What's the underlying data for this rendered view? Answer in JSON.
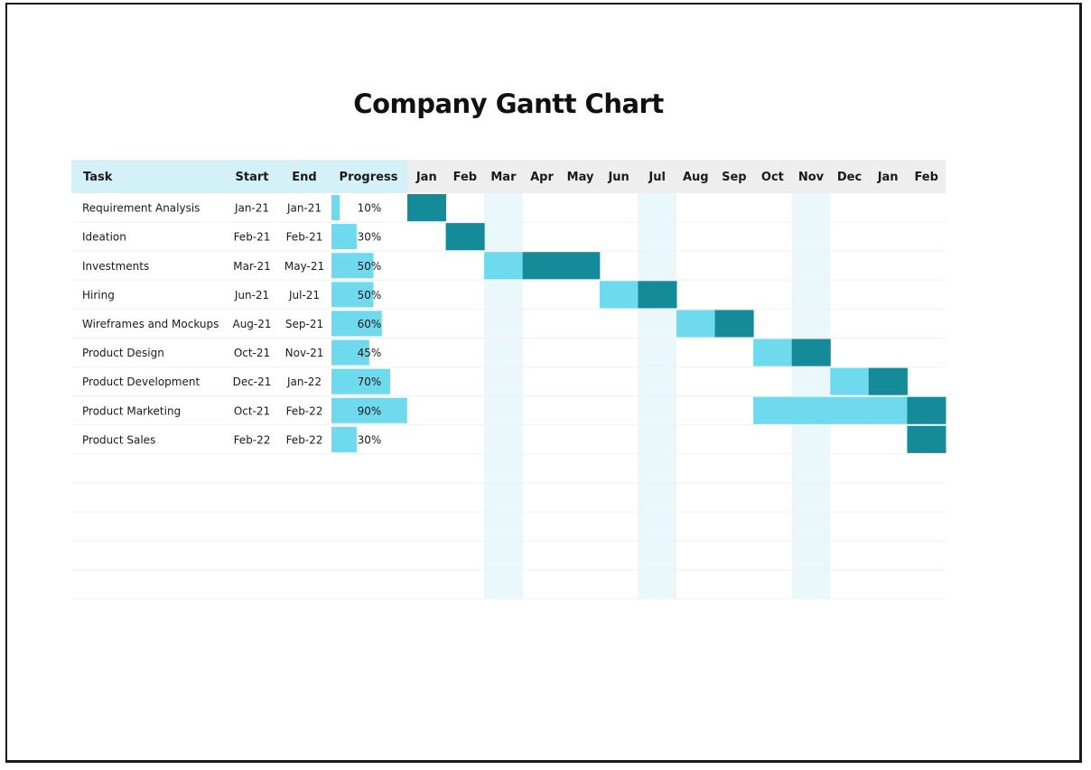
{
  "title": "Company Gantt Chart",
  "headers": {
    "task": "Task",
    "start": "Start",
    "end": "End",
    "progress": "Progress"
  },
  "months": [
    "Jan",
    "Feb",
    "Mar",
    "Apr",
    "May",
    "Jun",
    "Jul",
    "Aug",
    "Sep",
    "Oct",
    "Nov",
    "Dec",
    "Jan",
    "Feb"
  ],
  "colors": {
    "header_bg_left": "#d4f1f8",
    "header_bg_months": "#eeeeee",
    "progress_bar": "#6fd9ee",
    "done_segment": "#158a99",
    "remaining_segment": "#6fd9ee",
    "shaded_column": "#eaf7fb",
    "row_separator": "#eef2f4"
  },
  "shaded_month_indices": [
    2,
    6,
    10
  ],
  "chart_data": {
    "type": "gantt",
    "title": "Company Gantt Chart",
    "timeline": [
      "Jan",
      "Feb",
      "Mar",
      "Apr",
      "May",
      "Jun",
      "Jul",
      "Aug",
      "Sep",
      "Oct",
      "Nov",
      "Dec",
      "Jan",
      "Feb"
    ],
    "tasks": [
      {
        "task": "Requirement Analysis",
        "start": "Jan-21",
        "end": "Jan-21",
        "progress": "10%",
        "progress_value": 0.1,
        "start_index": 0,
        "end_index": 0,
        "done_from_index": 0
      },
      {
        "task": "Ideation",
        "start": "Feb-21",
        "end": "Feb-21",
        "progress": "30%",
        "progress_value": 0.3,
        "start_index": 1,
        "end_index": 1,
        "done_from_index": 1
      },
      {
        "task": "Investments",
        "start": "Mar-21",
        "end": "May-21",
        "progress": "50%",
        "progress_value": 0.5,
        "start_index": 2,
        "end_index": 4,
        "done_from_index": 3
      },
      {
        "task": "Hiring",
        "start": "Jun-21",
        "end": "Jul-21",
        "progress": "50%",
        "progress_value": 0.5,
        "start_index": 5,
        "end_index": 6,
        "done_from_index": 6
      },
      {
        "task": "Wireframes and Mockups",
        "start": "Aug-21",
        "end": "Sep-21",
        "progress": "60%",
        "progress_value": 0.6,
        "start_index": 7,
        "end_index": 8,
        "done_from_index": 8
      },
      {
        "task": "Product Design",
        "start": "Oct-21",
        "end": "Nov-21",
        "progress": "45%",
        "progress_value": 0.45,
        "start_index": 9,
        "end_index": 10,
        "done_from_index": 10
      },
      {
        "task": "Product Development",
        "start": "Dec-21",
        "end": "Jan-22",
        "progress": "70%",
        "progress_value": 0.7,
        "start_index": 11,
        "end_index": 12,
        "done_from_index": 12
      },
      {
        "task": "Product Marketing",
        "start": "Oct-21",
        "end": "Feb-22",
        "progress": "90%",
        "progress_value": 0.9,
        "start_index": 9,
        "end_index": 13,
        "done_from_index": 13
      },
      {
        "task": "Product Sales",
        "start": "Feb-22",
        "end": "Feb-22",
        "progress": "30%",
        "progress_value": 0.3,
        "start_index": 13,
        "end_index": 13,
        "done_from_index": 13
      }
    ],
    "empty_rows": 5
  }
}
